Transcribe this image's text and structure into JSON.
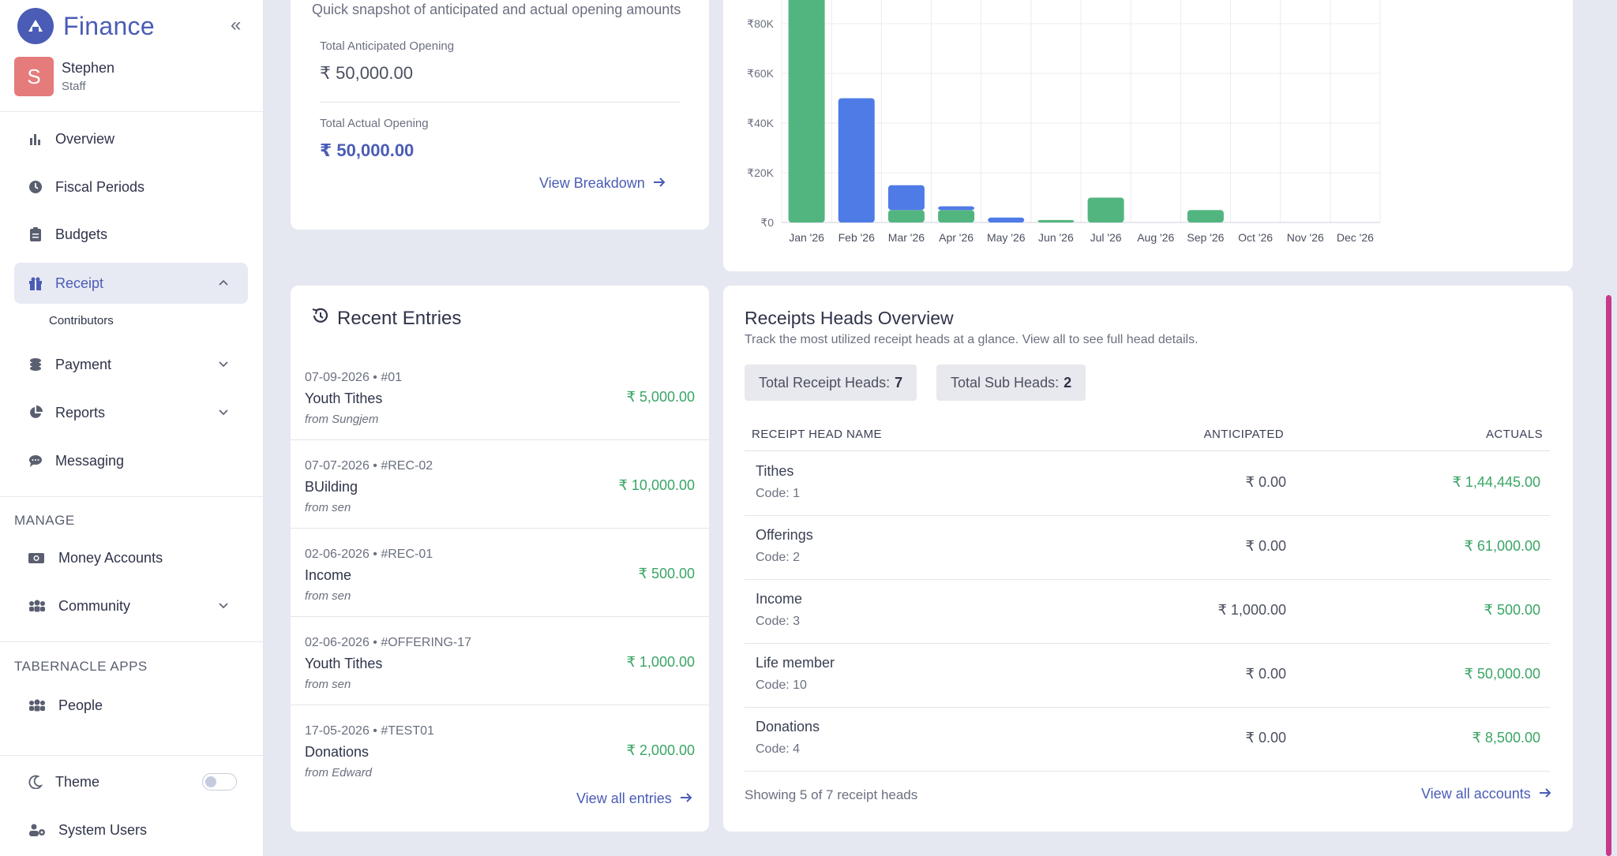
{
  "brand": {
    "title": "Finance"
  },
  "user": {
    "initial": "S",
    "name": "Stephen",
    "role": "Staff"
  },
  "nav": {
    "overview": "Overview",
    "fiscal": "Fiscal Periods",
    "budgets": "Budgets",
    "receipt": "Receipt",
    "contributors": "Contributors",
    "payment": "Payment",
    "reports": "Reports",
    "messaging": "Messaging",
    "manage_label": "MANAGE",
    "money_accounts": "Money Accounts",
    "community": "Community",
    "apps_label": "TABERNACLE APPS",
    "people": "People",
    "theme": "Theme",
    "system_users": "System Users"
  },
  "snapshot": {
    "subtitle": "Quick snapshot of anticipated and actual opening amounts",
    "anticipated_label": "Total Anticipated Opening",
    "anticipated_value": "₹ 50,000.00",
    "actual_label": "Total Actual Opening",
    "actual_value": "₹ 50,000.00",
    "link": "View Breakdown"
  },
  "chart_data": {
    "type": "bar",
    "stacked": true,
    "categories": [
      "Jan '26",
      "Feb '26",
      "Mar '26",
      "Apr '26",
      "May '26",
      "Jun '26",
      "Jul '26",
      "Aug '26",
      "Sep '26",
      "Oct '26",
      "Nov '26",
      "Dec '26"
    ],
    "series": [
      {
        "color": "#52b57f",
        "values": [
          100000,
          0,
          5000,
          5000,
          0,
          1000,
          10000,
          0,
          5000,
          0,
          0,
          0
        ]
      },
      {
        "color": "#4f7be6",
        "values": [
          0,
          50000,
          10000,
          1500,
          2000,
          0,
          0,
          0,
          0,
          0,
          0,
          0
        ]
      }
    ],
    "yticks": [
      "₹0",
      "₹20K",
      "₹40K",
      "₹60K",
      "₹80K"
    ],
    "ylim": [
      0,
      100000
    ],
    "grid": true
  },
  "recent": {
    "title": "Recent Entries",
    "entries": [
      {
        "meta": "07-09-2026 • #01",
        "name": "Youth Tithes",
        "from": "from Sungjem",
        "amount": "₹ 5,000.00"
      },
      {
        "meta": "07-07-2026 • #REC-02",
        "name": "BUilding",
        "from": "from sen",
        "amount": "₹ 10,000.00"
      },
      {
        "meta": "02-06-2026 • #REC-01",
        "name": "Income",
        "from": "from sen",
        "amount": "₹ 500.00"
      },
      {
        "meta": "02-06-2026 • #OFFERING-17",
        "name": "Youth Tithes",
        "from": "from sen",
        "amount": "₹ 1,000.00"
      },
      {
        "meta": "17-05-2026 • #TEST01",
        "name": "Donations",
        "from": "from Edward",
        "amount": "₹ 2,000.00"
      }
    ],
    "link": "View all entries"
  },
  "heads": {
    "title": "Receipts Heads Overview",
    "desc": "Track the most utilized receipt heads at a glance. View all to see full head details.",
    "total_heads_label": "Total Receipt Heads:",
    "total_heads": "7",
    "sub_heads_label": "Total Sub Heads:",
    "sub_heads": "2",
    "columns": {
      "name": "RECEIPT HEAD NAME",
      "anticipated": "ANTICIPATED",
      "actuals": "ACTUALS"
    },
    "rows": [
      {
        "name": "Tithes",
        "code": "Code: 1",
        "anticipated": "₹ 0.00",
        "actual": "₹ 1,44,445.00"
      },
      {
        "name": "Offerings",
        "code": "Code: 2",
        "anticipated": "₹ 0.00",
        "actual": "₹ 61,000.00"
      },
      {
        "name": "Income",
        "code": "Code: 3",
        "anticipated": "₹ 1,000.00",
        "actual": "₹ 500.00"
      },
      {
        "name": "Life member",
        "code": "Code: 10",
        "anticipated": "₹ 0.00",
        "actual": "₹ 50,000.00"
      },
      {
        "name": "Donations",
        "code": "Code: 4",
        "anticipated": "₹ 0.00",
        "actual": "₹ 8,500.00"
      }
    ],
    "showing": "Showing 5 of 7 receipt heads",
    "link": "View all accounts"
  }
}
